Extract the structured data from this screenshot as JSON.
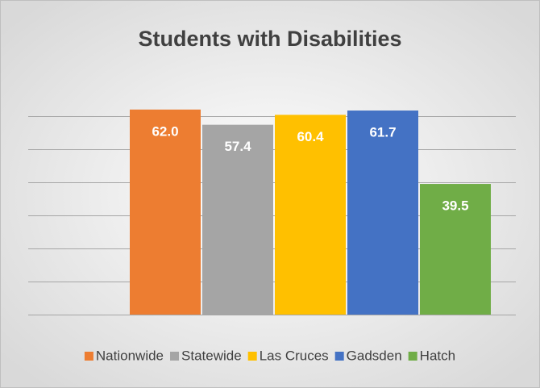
{
  "chart_data": {
    "type": "bar",
    "title": "Students with Disabilities",
    "categories": [
      null
    ],
    "series": [
      {
        "name": "Nationwide",
        "color": "#ED7D31",
        "values": [
          62.0
        ],
        "value_labels": [
          "62.0"
        ]
      },
      {
        "name": "Statewide",
        "color": "#A5A5A5",
        "values": [
          57.4
        ]
      },
      {
        "name": "Las Cruces",
        "color": "#FFC000",
        "values": [
          60.4
        ]
      },
      {
        "name": "Gadsden",
        "color": "#4472C4",
        "values": [
          61.7
        ]
      },
      {
        "name": "Hatch",
        "color": "#70AD47",
        "values": [
          39.5
        ]
      }
    ],
    "ylim": [
      0,
      70
    ],
    "yticks": [
      0,
      10,
      20,
      30,
      40,
      50,
      60
    ],
    "grid": true,
    "legend": "bottom"
  }
}
